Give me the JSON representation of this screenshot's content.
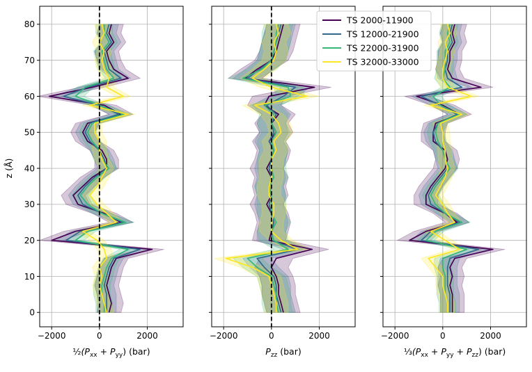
{
  "chart_data": {
    "type": "line",
    "ylabel": "z (Å)",
    "ylim": [
      -4,
      85
    ],
    "yticks": [
      0,
      10,
      20,
      30,
      40,
      50,
      60,
      70,
      80
    ],
    "xlim": [
      -2500,
      3500
    ],
    "xticks": [
      -2000,
      0,
      2000
    ],
    "grid": true,
    "legend": {
      "position": "top-right",
      "entries": [
        "TS 2000-11900",
        "TS 12000-21900",
        "TS 22000-31900",
        "TS 32000-33000"
      ]
    },
    "colors": {
      "TS 2000-11900": "#440154",
      "TS 12000-21900": "#31688e",
      "TS 22000-31900": "#35b779",
      "TS 32000-33000": "#fde725"
    },
    "z": [
      0,
      2.5,
      5,
      7.5,
      10,
      12.5,
      15,
      17.5,
      20,
      22.5,
      25,
      27.5,
      30,
      32.5,
      35,
      37.5,
      40,
      42.5,
      45,
      47.5,
      50,
      52.5,
      55,
      57.5,
      60,
      62.5,
      65,
      67.5,
      70,
      72.5,
      75,
      77.5,
      80
    ],
    "panels": [
      {
        "name": "lateral",
        "xlabel_parts": [
          "½",
          "(P",
          "xx",
          " + P",
          "yy",
          ") (bar)"
        ],
        "zero_line": true,
        "series": [
          {
            "name": "TS 2000-11900",
            "x": [
              400,
              500,
              400,
              300,
              400,
              500,
              700,
              2200,
              -2000,
              -1000,
              900,
              200,
              -900,
              -1100,
              -700,
              -300,
              300,
              300,
              100,
              -500,
              -700,
              -500,
              900,
              200,
              -2100,
              -300,
              1200,
              600,
              400,
              300,
              600,
              400,
              500
            ],
            "band": 500
          },
          {
            "name": "TS 12000-21900",
            "x": [
              300,
              300,
              300,
              200,
              300,
              400,
              600,
              1700,
              -1400,
              -800,
              1000,
              100,
              -700,
              -900,
              -600,
              -200,
              300,
              200,
              0,
              -400,
              -600,
              -400,
              800,
              0,
              -1500,
              -500,
              900,
              400,
              300,
              200,
              500,
              300,
              400
            ],
            "band": 400
          },
          {
            "name": "TS 22000-31900",
            "x": [
              200,
              200,
              100,
              100,
              200,
              300,
              500,
              1200,
              -1000,
              -500,
              1100,
              100,
              -500,
              -800,
              -500,
              -100,
              400,
              100,
              0,
              -300,
              -500,
              -300,
              1000,
              0,
              -1000,
              -600,
              600,
              300,
              200,
              100,
              400,
              200,
              200
            ],
            "band": 350
          },
          {
            "name": "TS 32000-33000",
            "x": [
              300,
              200,
              100,
              0,
              100,
              0,
              300,
              200,
              -100,
              -700,
              700,
              300,
              -100,
              -400,
              -100,
              100,
              300,
              100,
              0,
              0,
              -200,
              -200,
              1200,
              -400,
              1000,
              300,
              400,
              200,
              100,
              200,
              0,
              200,
              100
            ],
            "band": 300
          }
        ]
      },
      {
        "name": "normal",
        "xlabel_parts": [
          "P",
          "zz",
          " (bar)"
        ],
        "zero_line": true,
        "series": [
          {
            "name": "TS 2000-11900",
            "x": [
              500,
              400,
              300,
              300,
              200,
              0,
              200,
              1700,
              -100,
              0,
              100,
              0,
              -200,
              0,
              -100,
              0,
              -200,
              0,
              100,
              -100,
              200,
              0,
              300,
              -300,
              -100,
              1800,
              -1100,
              -600,
              0,
              200,
              300,
              400,
              500
            ],
            "band": 700
          },
          {
            "name": "TS 12000-21900",
            "x": [
              400,
              300,
              200,
              200,
              100,
              -300,
              -600,
              1100,
              0,
              0,
              100,
              0,
              -100,
              0,
              -100,
              0,
              -100,
              0,
              100,
              -100,
              100,
              0,
              200,
              -200,
              500,
              1000,
              -1000,
              -500,
              0,
              100,
              200,
              300,
              400
            ],
            "band": 600
          },
          {
            "name": "TS 22000-31900",
            "x": [
              300,
              200,
              200,
              100,
              0,
              -600,
              -1000,
              700,
              100,
              0,
              200,
              0,
              0,
              0,
              -100,
              100,
              0,
              0,
              100,
              0,
              200,
              0,
              100,
              -300,
              800,
              700,
              -1200,
              -400,
              0,
              100,
              200,
              200,
              300
            ],
            "band": 600
          },
          {
            "name": "TS 32000-33000",
            "x": [
              200,
              200,
              100,
              0,
              -100,
              -800,
              -1900,
              1100,
              400,
              0,
              0,
              100,
              100,
              -100,
              -100,
              0,
              0,
              0,
              200,
              100,
              400,
              300,
              0,
              -700,
              1500,
              0,
              -800,
              -300,
              100,
              200,
              100,
              300,
              200
            ],
            "band": 500
          }
        ]
      },
      {
        "name": "isotropic",
        "xlabel_parts": [
          "⅓",
          "(P",
          "xx",
          " + P",
          "yy",
          " + P",
          "zz",
          ") (bar)"
        ],
        "zero_line": false,
        "series": [
          {
            "name": "TS 2000-11900",
            "x": [
              400,
              400,
              400,
              300,
              400,
              300,
              500,
              2100,
              -1400,
              -700,
              600,
              100,
              -700,
              -700,
              -500,
              -200,
              100,
              200,
              100,
              -400,
              -400,
              -300,
              700,
              0,
              -1100,
              1600,
              400,
              200,
              300,
              300,
              500,
              400,
              500
            ],
            "band": 500
          },
          {
            "name": "TS 12000-21900",
            "x": [
              300,
              300,
              300,
              200,
              200,
              200,
              300,
              1500,
              -900,
              -500,
              700,
              100,
              -500,
              -600,
              -400,
              -100,
              200,
              100,
              0,
              -300,
              -400,
              -200,
              600,
              -100,
              -900,
              800,
              200,
              100,
              200,
              200,
              400,
              300,
              400
            ],
            "band": 400
          },
          {
            "name": "TS 22000-31900",
            "x": [
              200,
              200,
              100,
              100,
              100,
              0,
              0,
              1000,
              -700,
              -300,
              800,
              100,
              -300,
              -500,
              -300,
              0,
              300,
              100,
              0,
              -200,
              -300,
              -200,
              700,
              -100,
              -400,
              300,
              0,
              100,
              100,
              100,
              300,
              200,
              300
            ],
            "band": 350
          },
          {
            "name": "TS 32000-33000",
            "x": [
              200,
              200,
              100,
              0,
              0,
              -300,
              -600,
              700,
              100,
              -500,
              500,
              200,
              0,
              -300,
              -100,
              100,
              200,
              100,
              100,
              0,
              0,
              -100,
              800,
              -500,
              1200,
              200,
              0,
              0,
              100,
              200,
              100,
              300,
              200
            ],
            "band": 300
          }
        ]
      }
    ]
  }
}
